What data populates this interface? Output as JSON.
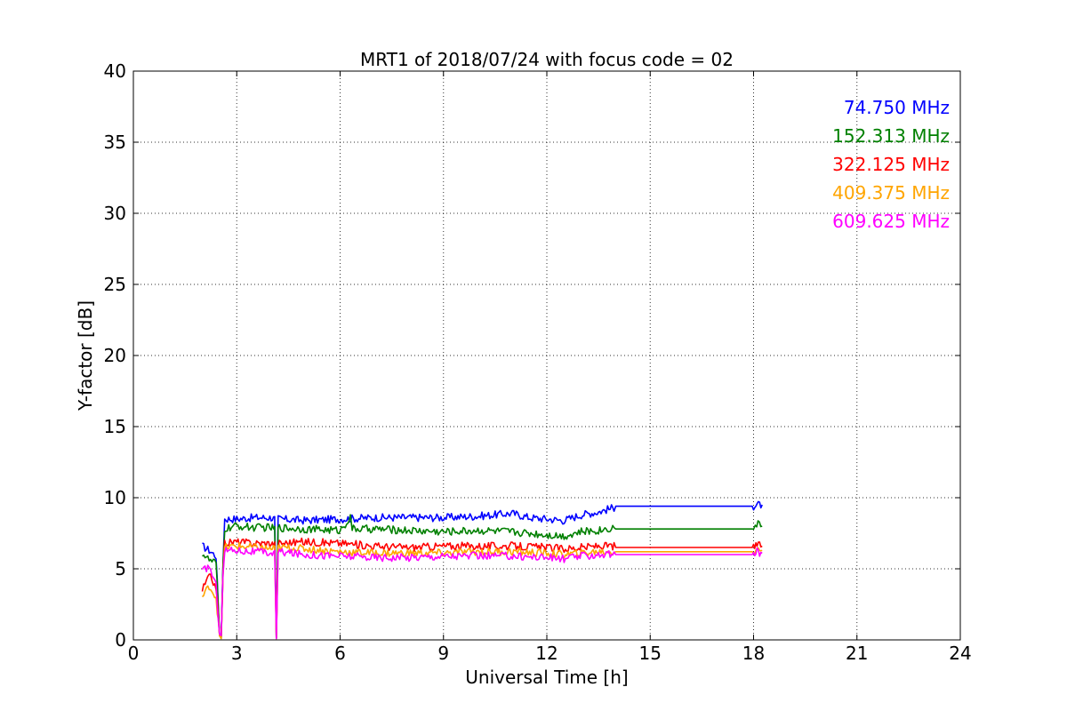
{
  "chart_data": {
    "type": "line",
    "title": "MRT1 of 2018/07/24 with focus code = 02",
    "xlabel": "Universal Time [h]",
    "ylabel": "Y-factor [dB]",
    "xlim": [
      0,
      24
    ],
    "ylim": [
      0,
      40
    ],
    "xticks": [
      0,
      3,
      6,
      9,
      12,
      15,
      18,
      21,
      24
    ],
    "yticks": [
      0,
      5,
      10,
      15,
      20,
      25,
      30,
      35,
      40
    ],
    "grid": true,
    "legend_position": "top-right",
    "series": [
      {
        "name": "74.750 MHz",
        "color": "#0000ff",
        "points": [
          [
            2.0,
            6.6
          ],
          [
            2.2,
            6.3
          ],
          [
            2.4,
            5.9
          ],
          [
            2.5,
            0.4
          ],
          [
            2.55,
            0.2
          ],
          [
            2.6,
            5.5
          ],
          [
            2.65,
            8.5
          ],
          [
            3.0,
            8.5
          ],
          [
            3.5,
            8.6
          ],
          [
            4.0,
            8.6
          ],
          [
            4.1,
            8.5
          ],
          [
            4.15,
            0.1
          ],
          [
            4.2,
            8.5
          ],
          [
            5.0,
            8.4
          ],
          [
            6.0,
            8.5
          ],
          [
            7.0,
            8.6
          ],
          [
            8.0,
            8.6
          ],
          [
            9.0,
            8.6
          ],
          [
            10.0,
            8.7
          ],
          [
            11.0,
            8.9
          ],
          [
            11.5,
            8.6
          ],
          [
            12.0,
            8.5
          ],
          [
            12.5,
            8.4
          ],
          [
            13.0,
            8.8
          ],
          [
            13.5,
            9.0
          ],
          [
            13.95,
            9.3
          ],
          [
            14.0,
            9.4
          ],
          [
            18.0,
            9.4
          ],
          [
            18.1,
            9.5
          ],
          [
            18.25,
            9.5
          ]
        ]
      },
      {
        "name": "152.313 MHz",
        "color": "#008000",
        "points": [
          [
            2.0,
            6.1
          ],
          [
            2.2,
            5.6
          ],
          [
            2.4,
            5.4
          ],
          [
            2.5,
            0.3
          ],
          [
            2.55,
            0.1
          ],
          [
            2.6,
            5.2
          ],
          [
            2.65,
            7.8
          ],
          [
            3.0,
            8.0
          ],
          [
            3.5,
            7.9
          ],
          [
            4.0,
            7.9
          ],
          [
            4.1,
            7.8
          ],
          [
            4.15,
            0.1
          ],
          [
            4.2,
            7.9
          ],
          [
            5.0,
            7.8
          ],
          [
            6.0,
            7.7
          ],
          [
            6.3,
            8.6
          ],
          [
            6.35,
            7.8
          ],
          [
            7.0,
            7.8
          ],
          [
            8.0,
            7.7
          ],
          [
            9.0,
            7.6
          ],
          [
            10.0,
            7.7
          ],
          [
            11.0,
            7.6
          ],
          [
            11.5,
            7.5
          ],
          [
            12.0,
            7.4
          ],
          [
            12.5,
            7.3
          ],
          [
            13.0,
            7.6
          ],
          [
            13.5,
            7.7
          ],
          [
            13.95,
            7.9
          ],
          [
            14.0,
            7.8
          ],
          [
            18.0,
            7.8
          ],
          [
            18.05,
            8.2
          ],
          [
            18.25,
            8.0
          ]
        ]
      },
      {
        "name": "322.125 MHz",
        "color": "#ff0000",
        "points": [
          [
            2.0,
            3.5
          ],
          [
            2.2,
            4.5
          ],
          [
            2.4,
            3.8
          ],
          [
            2.5,
            0.3
          ],
          [
            2.55,
            0.2
          ],
          [
            2.6,
            4.8
          ],
          [
            2.65,
            6.8
          ],
          [
            3.0,
            6.9
          ],
          [
            3.5,
            6.8
          ],
          [
            4.0,
            6.8
          ],
          [
            4.1,
            6.7
          ],
          [
            4.15,
            0.1
          ],
          [
            4.2,
            6.8
          ],
          [
            5.0,
            6.9
          ],
          [
            6.0,
            6.8
          ],
          [
            7.0,
            6.6
          ],
          [
            8.0,
            6.5
          ],
          [
            9.0,
            6.6
          ],
          [
            10.0,
            6.6
          ],
          [
            11.0,
            6.6
          ],
          [
            12.0,
            6.5
          ],
          [
            12.5,
            6.4
          ],
          [
            13.0,
            6.5
          ],
          [
            13.5,
            6.6
          ],
          [
            13.95,
            6.6
          ],
          [
            14.0,
            6.5
          ],
          [
            18.0,
            6.5
          ],
          [
            18.1,
            6.7
          ],
          [
            18.25,
            6.6
          ]
        ]
      },
      {
        "name": "409.375 MHz",
        "color": "#ffa500",
        "points": [
          [
            2.0,
            3.0
          ],
          [
            2.2,
            3.8
          ],
          [
            2.4,
            3.0
          ],
          [
            2.5,
            0.3
          ],
          [
            2.55,
            0.1
          ],
          [
            2.6,
            4.5
          ],
          [
            2.65,
            6.5
          ],
          [
            3.0,
            6.6
          ],
          [
            3.5,
            6.5
          ],
          [
            4.0,
            6.4
          ],
          [
            4.1,
            6.4
          ],
          [
            4.15,
            0.1
          ],
          [
            4.2,
            6.5
          ],
          [
            5.0,
            6.4
          ],
          [
            6.0,
            6.2
          ],
          [
            7.0,
            6.1
          ],
          [
            8.0,
            6.1
          ],
          [
            9.0,
            6.1
          ],
          [
            10.0,
            6.2
          ],
          [
            11.0,
            6.2
          ],
          [
            12.0,
            6.1
          ],
          [
            12.5,
            6.0
          ],
          [
            13.0,
            6.1
          ],
          [
            13.5,
            6.2
          ],
          [
            13.95,
            6.2
          ],
          [
            14.0,
            6.2
          ],
          [
            18.0,
            6.2
          ],
          [
            18.1,
            6.3
          ],
          [
            18.25,
            6.3
          ]
        ]
      },
      {
        "name": "609.625 MHz",
        "color": "#ff00ff",
        "points": [
          [
            2.0,
            4.8
          ],
          [
            2.2,
            5.2
          ],
          [
            2.4,
            3.8
          ],
          [
            2.5,
            0.4
          ],
          [
            2.55,
            0.3
          ],
          [
            2.6,
            4.8
          ],
          [
            2.65,
            6.3
          ],
          [
            3.0,
            6.3
          ],
          [
            3.5,
            6.2
          ],
          [
            4.0,
            6.1
          ],
          [
            4.1,
            6.1
          ],
          [
            4.15,
            0.1
          ],
          [
            4.2,
            6.2
          ],
          [
            5.0,
            6.0
          ],
          [
            6.0,
            5.9
          ],
          [
            7.0,
            5.8
          ],
          [
            8.0,
            5.8
          ],
          [
            9.0,
            5.9
          ],
          [
            10.0,
            5.9
          ],
          [
            11.0,
            5.9
          ],
          [
            12.0,
            5.8
          ],
          [
            12.5,
            5.7
          ],
          [
            13.0,
            5.9
          ],
          [
            13.5,
            6.0
          ],
          [
            13.95,
            6.0
          ],
          [
            14.0,
            6.0
          ],
          [
            18.0,
            6.0
          ],
          [
            18.1,
            6.2
          ],
          [
            18.25,
            6.1
          ]
        ]
      }
    ]
  }
}
